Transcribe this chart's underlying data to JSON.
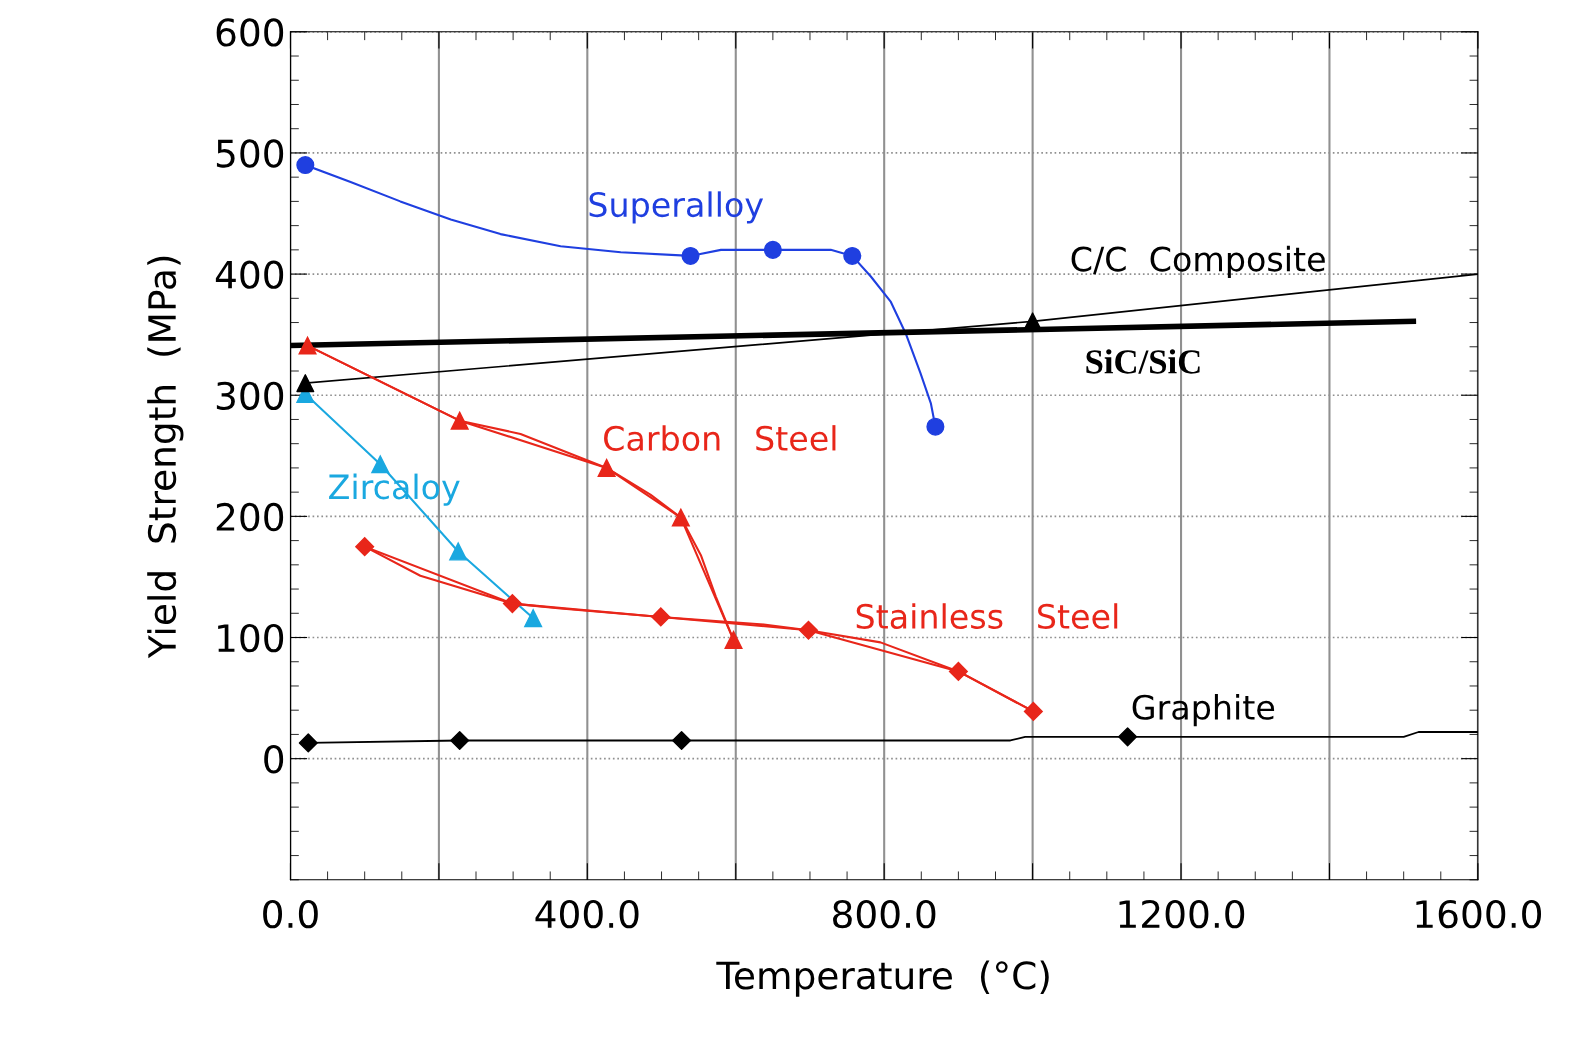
{
  "chart_data": {
    "type": "line",
    "xlabel": "Temperature  (°C)",
    "ylabel": "Yield  Strength  (MPa)",
    "xlim": [
      0,
      1600
    ],
    "ylim": [
      -100,
      600
    ],
    "xticks": [
      {
        "value": 0,
        "label": "0.0"
      },
      {
        "value": 200,
        "label": null
      },
      {
        "value": 400,
        "label": "400.0"
      },
      {
        "value": 600,
        "label": null
      },
      {
        "value": 800,
        "label": "800.0"
      },
      {
        "value": 1000,
        "label": null
      },
      {
        "value": 1200,
        "label": "1200.0"
      },
      {
        "value": 1400,
        "label": null
      },
      {
        "value": 1600,
        "label": "1600.0"
      }
    ],
    "yticks": [
      0,
      100,
      200,
      300,
      400,
      500,
      600
    ],
    "grid": true,
    "series": [
      {
        "name": "Superalloy",
        "color": "#1f3fe0",
        "marker": "none",
        "x": [
          20,
          81,
          148,
          216,
          283,
          364,
          445,
          539,
          580,
          650,
          728,
          757,
          782,
          809,
          829,
          849,
          863,
          869
        ],
        "values": [
          490,
          476,
          460,
          445,
          433,
          423,
          418,
          415,
          420,
          420,
          420,
          415,
          398,
          377,
          351,
          318,
          293,
          274
        ]
      },
      {
        "type": "scatter",
        "color": "#1f3fe0",
        "marker": "circle",
        "x": [
          20,
          539,
          650,
          757,
          869
        ],
        "values": [
          490,
          415,
          420,
          415,
          274
        ]
      },
      {
        "name": "C/C  Composite",
        "color": "#000000",
        "marker": "none",
        "x": [
          20,
          1000,
          1600
        ],
        "values": [
          310,
          361,
          400
        ]
      },
      {
        "type": "scatter",
        "color": "#000000",
        "marker": "triangle",
        "x": [
          20,
          1000
        ],
        "values": [
          310,
          361
        ]
      },
      {
        "name": "SiC/SiC",
        "color": "#000000",
        "marker": "none",
        "x": [
          0,
          1513
        ],
        "values": [
          341,
          361
        ]
      },
      {
        "name": "Carbon   Steel",
        "color": "#e8261a",
        "marker": "triangle",
        "x": [
          23,
          228,
          426,
          526,
          597
        ],
        "values": [
          341,
          279,
          240,
          199,
          98
        ]
      },
      {
        "type": "line",
        "color": "#e8261a",
        "marker": "none",
        "x": [
          23,
          228,
          310,
          426,
          485,
          526,
          553,
          573,
          597
        ],
        "values": [
          341,
          279,
          268,
          240,
          218,
          199,
          168,
          134,
          98
        ]
      },
      {
        "name": "Zircaloy",
        "color": "#1aa8e0",
        "marker": "triangle",
        "x": [
          20,
          121,
          226,
          327
        ],
        "values": [
          301,
          243,
          171,
          116
        ]
      },
      {
        "name": "Stainless   Steel",
        "color": "#e8261a",
        "marker": "diamond",
        "x": [
          100,
          299,
          499,
          698,
          900,
          1001
        ],
        "values": [
          175,
          128,
          117,
          106,
          72,
          39
        ]
      },
      {
        "type": "line",
        "color": "#e8261a",
        "marker": "none",
        "x": [
          100,
          175,
          299,
          364,
          499,
          633,
          698,
          795,
          900,
          1001
        ],
        "values": [
          175,
          151,
          128,
          124,
          117,
          111,
          106,
          96,
          72,
          39
        ]
      },
      {
        "name": "Graphite",
        "color": "#000000",
        "marker": "none",
        "x": [
          24,
          228,
          527,
          970,
          990,
          1128,
          1500,
          1520,
          1600
        ],
        "values": [
          13,
          15,
          15,
          15,
          18,
          18,
          18,
          22,
          22
        ]
      },
      {
        "type": "scatter",
        "color": "#000000",
        "marker": "diamond",
        "x": [
          24,
          228,
          527,
          1128
        ],
        "values": [
          13,
          15,
          15,
          18
        ]
      }
    ]
  }
}
